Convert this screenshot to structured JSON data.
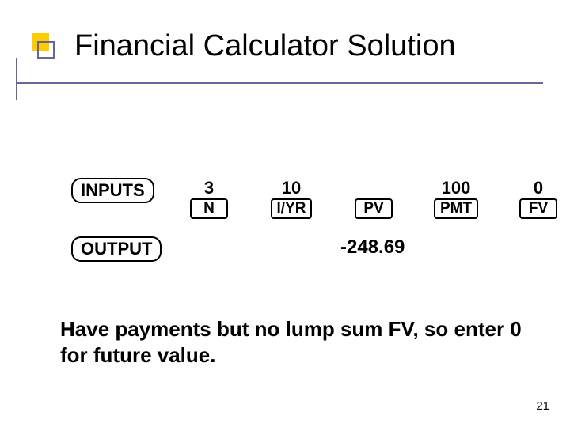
{
  "title": "Financial Calculator Solution",
  "labels": {
    "inputs": "INPUTS",
    "output": "OUTPUT"
  },
  "keys": [
    {
      "name": "N",
      "value": "3"
    },
    {
      "name": "I/YR",
      "value": "10"
    },
    {
      "name": "PV",
      "value": ""
    },
    {
      "name": "PMT",
      "value": "100"
    },
    {
      "name": "FV",
      "value": "0"
    }
  ],
  "output_value": "-248.69",
  "note": "Have payments but no lump sum FV, so enter 0 for future value.",
  "page_number": "21",
  "colors": {
    "accent_box": "#ffcc00",
    "accent_line": "#666699",
    "text": "#000000",
    "background": "#ffffff"
  },
  "fonts": {
    "title_family": "Comic Sans MS",
    "title_size_pt": 29,
    "body_size_pt": 17,
    "note_size_pt": 20
  }
}
